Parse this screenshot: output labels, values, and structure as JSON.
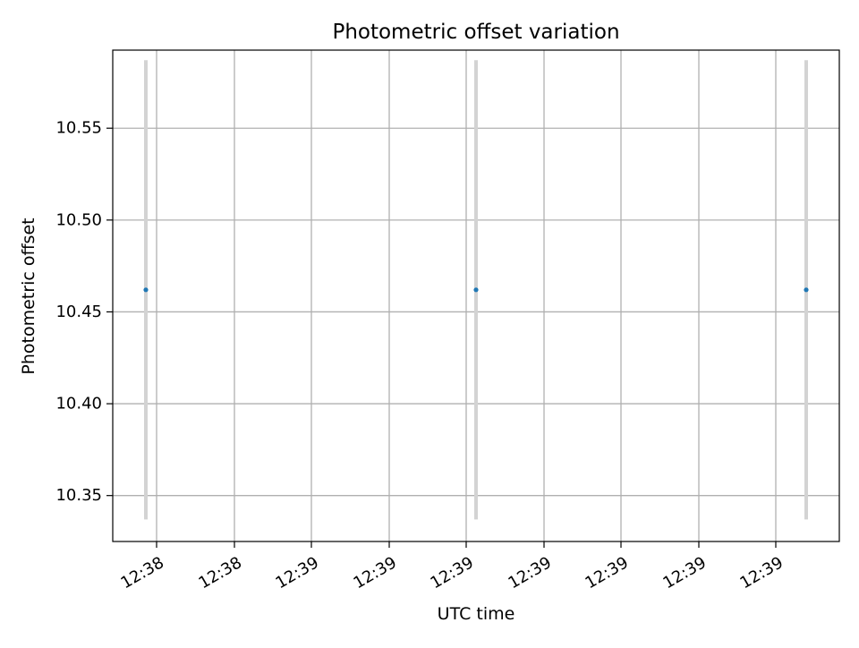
{
  "chart_data": {
    "type": "scatter",
    "title": "Photometric offset variation",
    "xlabel": "UTC time",
    "ylabel": "Photometric offset",
    "x_tick_labels": [
      "12:38",
      "12:38",
      "12:39",
      "12:39",
      "12:39",
      "12:39",
      "12:39",
      "12:39",
      "12:39"
    ],
    "y_ticks": [
      10.35,
      10.4,
      10.45,
      10.5,
      10.55
    ],
    "y_tick_labels": [
      "10.35",
      "10.40",
      "10.45",
      "10.50",
      "10.55"
    ],
    "ylim": [
      10.325,
      10.5925
    ],
    "grid": true,
    "legend": "none",
    "series": [
      {
        "points": [
          {
            "x": "12:38",
            "y": 10.462,
            "yerr": 0.125
          },
          {
            "x": "12:39",
            "y": 10.462,
            "yerr": 0.125
          },
          {
            "x": "12:39",
            "y": 10.462,
            "yerr": 0.125
          }
        ]
      }
    ],
    "colors": {
      "marker": "#1f77b4",
      "errorbar": "#d3d3d3",
      "grid": "#b0b0b0",
      "axes": "#000000"
    }
  }
}
